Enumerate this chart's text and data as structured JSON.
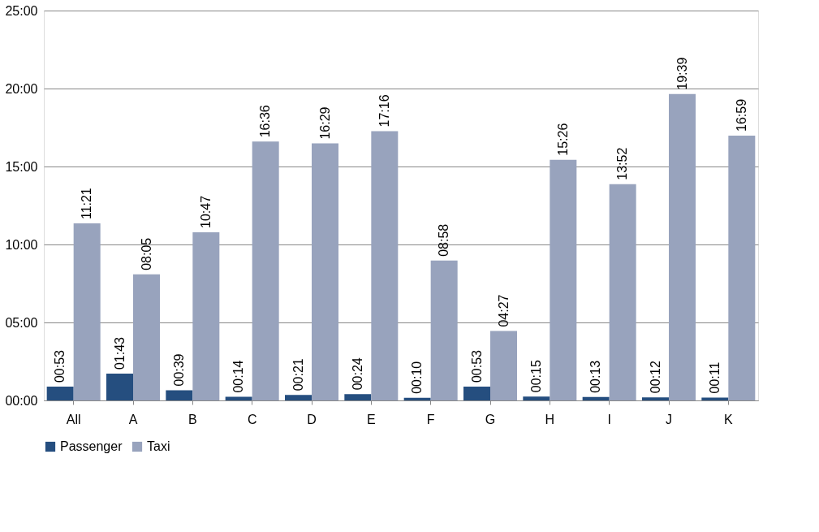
{
  "chart_data": {
    "type": "bar",
    "categories": [
      "All",
      "A",
      "B",
      "C",
      "D",
      "E",
      "F",
      "G",
      "H",
      "I",
      "J",
      "K"
    ],
    "series": [
      {
        "name": "Passenger",
        "color": "#254e7f",
        "values": [
          0.883,
          1.717,
          0.65,
          0.233,
          0.35,
          0.4,
          0.167,
          0.883,
          0.25,
          0.217,
          0.2,
          0.183
        ],
        "value_labels": [
          "00:53",
          "01:43",
          "00:39",
          "00:14",
          "00:21",
          "00:24",
          "00:10",
          "00:53",
          "00:15",
          "00:13",
          "00:12",
          "00:11"
        ]
      },
      {
        "name": "Taxi",
        "color": "#98a3bd",
        "values": [
          11.35,
          8.083,
          10.783,
          16.6,
          16.483,
          17.267,
          8.967,
          4.45,
          15.433,
          13.867,
          19.65,
          16.983
        ],
        "value_labels": [
          "11:21",
          "08:05",
          "10:47",
          "16:36",
          "16:29",
          "17:16",
          "08:58",
          "04:27",
          "15:26",
          "13:52",
          "19:39",
          "16:59"
        ]
      }
    ],
    "ylim": [
      0,
      25
    ],
    "yticks": [
      {
        "value": 0,
        "label": "00:00"
      },
      {
        "value": 5,
        "label": "05:00"
      },
      {
        "value": 10,
        "label": "10:00"
      },
      {
        "value": 15,
        "label": "15:00"
      },
      {
        "value": 20,
        "label": "20:00"
      },
      {
        "value": 25,
        "label": "25:00"
      }
    ],
    "grid": "y",
    "legend": "bottom"
  }
}
